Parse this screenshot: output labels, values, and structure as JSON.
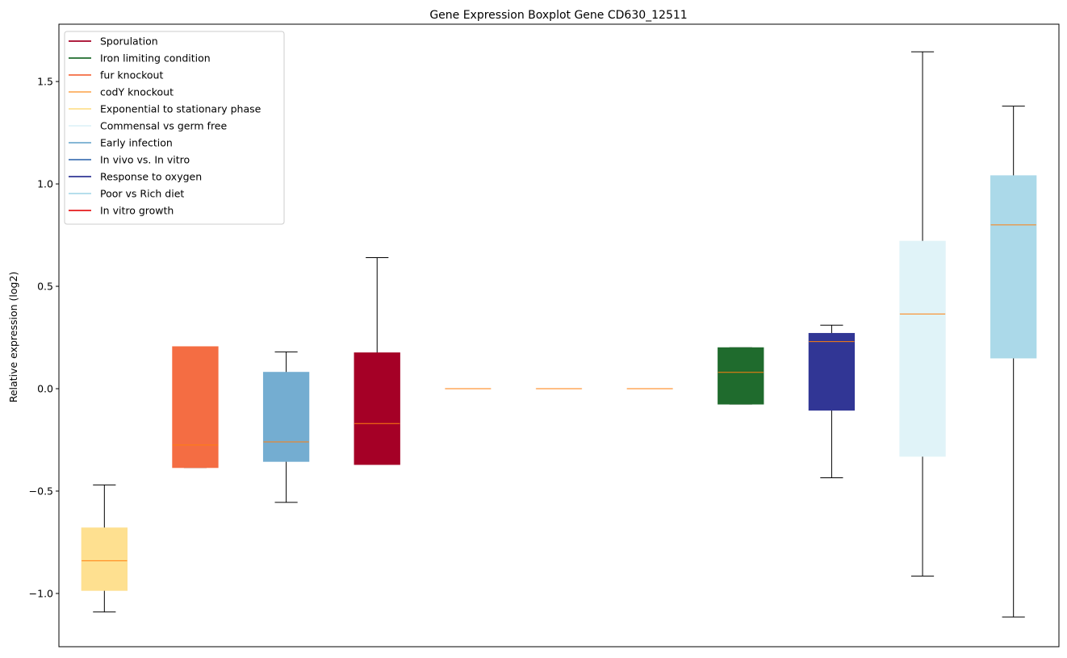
{
  "chart_data": {
    "type": "boxplot",
    "title": "Gene Expression Boxplot Gene CD630_12511",
    "xlabel": "",
    "ylabel": "Relative expression (log2)",
    "ylim": [
      -1.26,
      1.78
    ],
    "yticks": [
      -1.0,
      -0.5,
      0.0,
      0.5,
      1.0,
      1.5
    ],
    "ytick_labels": [
      "−1.0",
      "−0.5",
      "0.0",
      "0.5",
      "1.0",
      "1.5"
    ],
    "show_xticks": false,
    "grid": false,
    "legend_position": "top-left",
    "median_color": "#ff7f0e",
    "whisker_color": "#000000",
    "legend": [
      {
        "label": "Sporulation",
        "color": "#a50026"
      },
      {
        "label": "Iron limiting condition",
        "color": "#1f6b2d"
      },
      {
        "label": "fur knockout",
        "color": "#f46d43"
      },
      {
        "label": "codY knockout",
        "color": "#fdae61"
      },
      {
        "label": "Exponential to stationary phase",
        "color": "#fee090"
      },
      {
        "label": "Commensal vs germ free",
        "color": "#e0f3f8"
      },
      {
        "label": "Early infection",
        "color": "#74add1"
      },
      {
        "label": "In vivo vs. In vitro",
        "color": "#4575b4"
      },
      {
        "label": "Response to oxygen",
        "color": "#313695"
      },
      {
        "label": "Poor vs Rich diet",
        "color": "#abd9e9"
      },
      {
        "label": "In vitro growth",
        "color": "#e41a1c"
      }
    ],
    "boxes": [
      {
        "group": "Exponential to stationary phase",
        "color": "#fee090",
        "whislo": -1.09,
        "q1": -0.985,
        "med": -0.84,
        "q3": -0.68,
        "whishi": -0.47
      },
      {
        "group": "fur knockout",
        "color": "#f46d43",
        "whislo": -0.385,
        "q1": -0.385,
        "med": -0.275,
        "q3": 0.205,
        "whishi": 0.205
      },
      {
        "group": "Early infection",
        "color": "#74add1",
        "whislo": -0.555,
        "q1": -0.355,
        "med": -0.26,
        "q3": 0.08,
        "whishi": 0.18
      },
      {
        "group": "Sporulation",
        "color": "#a50026",
        "whislo": -0.37,
        "q1": -0.37,
        "med": -0.17,
        "q3": 0.175,
        "whishi": 0.64
      },
      {
        "group": "codY knockout",
        "color": "#fdae61",
        "whislo": 0.0,
        "q1": 0.0,
        "med": 0.0,
        "q3": 0.0,
        "whishi": 0.0
      },
      {
        "group": "codY knockout",
        "color": "#fdae61",
        "whislo": 0.0,
        "q1": 0.0,
        "med": 0.0,
        "q3": 0.0,
        "whishi": 0.0
      },
      {
        "group": "codY knockout",
        "color": "#fdae61",
        "whislo": 0.0,
        "q1": 0.0,
        "med": 0.0,
        "q3": 0.0,
        "whishi": 0.0
      },
      {
        "group": "Iron limiting condition",
        "color": "#1f6b2d",
        "whislo": -0.075,
        "q1": -0.075,
        "med": 0.08,
        "q3": 0.2,
        "whishi": 0.2
      },
      {
        "group": "Response to oxygen",
        "color": "#313695",
        "whislo": -0.435,
        "q1": -0.105,
        "med": 0.23,
        "q3": 0.27,
        "whishi": 0.31
      },
      {
        "group": "Commensal vs germ free",
        "color": "#e0f3f8",
        "whislo": -0.915,
        "q1": -0.33,
        "med": 0.365,
        "q3": 0.72,
        "whishi": 1.645
      },
      {
        "group": "Poor vs Rich diet",
        "color": "#abd9e9",
        "whislo": -1.115,
        "q1": 0.15,
        "med": 0.8,
        "q3": 1.04,
        "whishi": 1.38
      }
    ]
  }
}
